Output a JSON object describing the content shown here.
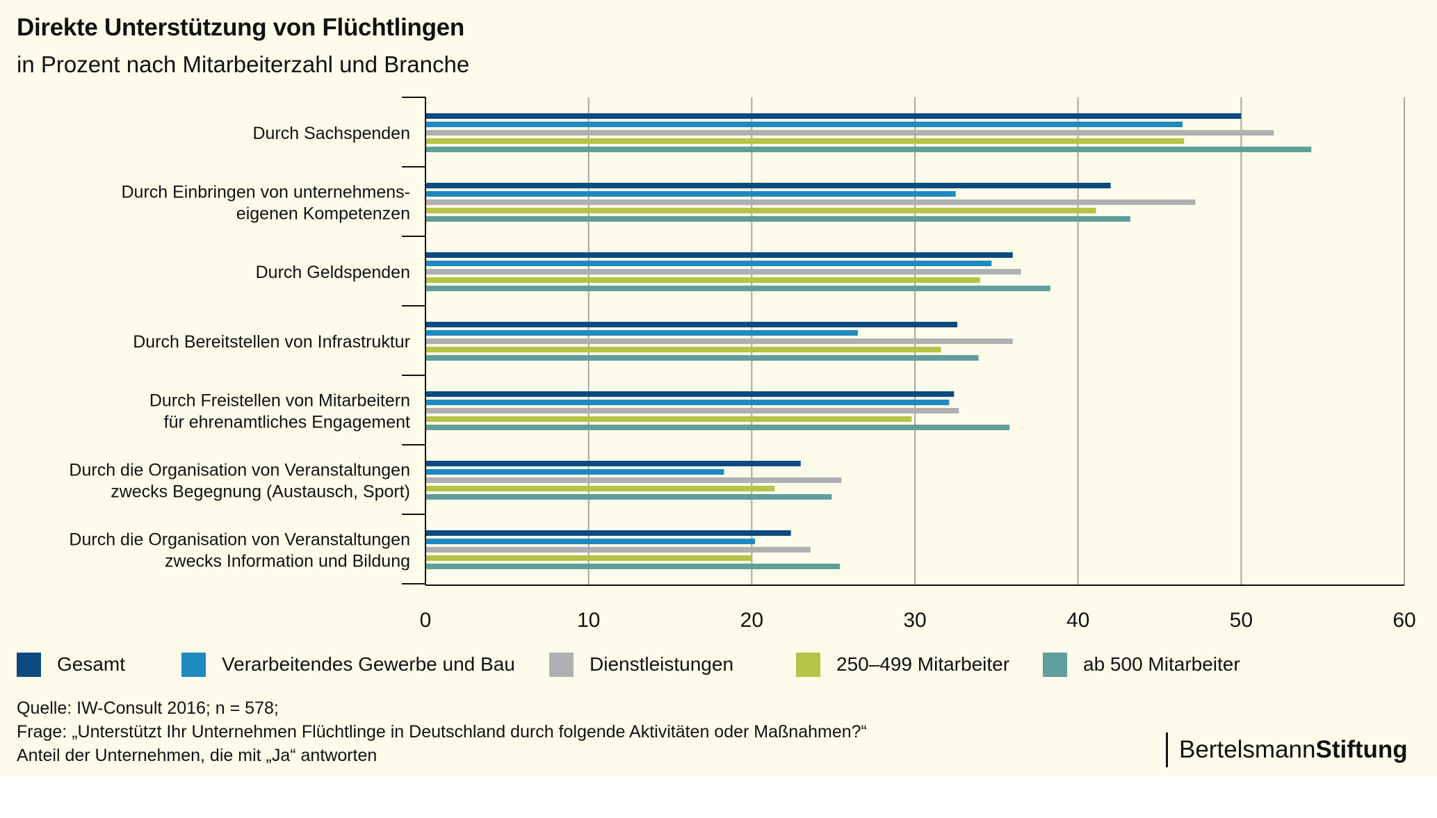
{
  "header": {
    "title": "Direkte Unterstützung von Flüchtlingen",
    "subtitle": "in Prozent nach Mitarbeiterzahl und Branche"
  },
  "colors": {
    "background": "#fdfbea",
    "gesamt": "#0d4a7f",
    "verarbeitendes": "#1f8ac0",
    "dienstleistungen": "#aeb0b2",
    "mitarbeiter_250_499": "#b3c447",
    "ab_500": "#5f9e9a",
    "gridline": "#a6a6a6",
    "axis": "#111111"
  },
  "chart_data": {
    "type": "bar",
    "orientation": "horizontal",
    "categories": [
      [
        "Durch Sachspenden"
      ],
      [
        "Durch Einbringen von unternehmens-",
        "eigenen Kompetenzen"
      ],
      [
        "Durch Geldspenden"
      ],
      [
        "Durch Bereitstellen von Infrastruktur"
      ],
      [
        "Durch Freistellen von Mitarbeitern",
        "für ehrenamtliches Engagement"
      ],
      [
        "Durch die Organisation von Veranstaltungen",
        "zwecks Begegnung (Austausch, Sport)"
      ],
      [
        "Durch die Organisation von Veranstaltungen",
        "zwecks Information und Bildung"
      ]
    ],
    "series": [
      {
        "name": "Gesamt",
        "color": "#0d4a7f",
        "values": [
          50,
          42,
          36,
          32.6,
          32.4,
          23,
          22.4
        ]
      },
      {
        "name": "Verarbeitendes Gewerbe und Bau",
        "color": "#1f8ac0",
        "values": [
          46.4,
          32.5,
          34.7,
          26.5,
          32.1,
          18.3,
          20.2
        ]
      },
      {
        "name": "Dienstleistungen",
        "color": "#aeb0b2",
        "values": [
          52,
          47.2,
          36.5,
          36,
          32.7,
          25.5,
          23.6
        ]
      },
      {
        "name": "250–499 Mitarbeiter",
        "color": "#b3c447",
        "values": [
          46.5,
          41.1,
          34,
          31.6,
          29.8,
          21.4,
          20
        ]
      },
      {
        "name": "ab 500 Mitarbeiter",
        "color": "#5f9e9a",
        "values": [
          54.3,
          43.2,
          38.3,
          33.9,
          35.8,
          24.9,
          25.4
        ]
      }
    ],
    "xlim": [
      0,
      60
    ],
    "xticks": [
      0,
      10,
      20,
      30,
      40,
      50,
      60
    ],
    "grid": true,
    "legend": "bottom"
  },
  "footer": {
    "source_lines": [
      "Quelle: IW-Consult 2016; n = 578;",
      "Frage: „Unterstützt Ihr Unternehmen Flüchtlinge in Deutschland durch folgende Aktivitäten oder Maßnahmen?“",
      "Anteil der Unternehmen, die mit „Ja“ antworten"
    ],
    "logo_regular": "Bertelsmann",
    "logo_bold": "Stiftung"
  }
}
